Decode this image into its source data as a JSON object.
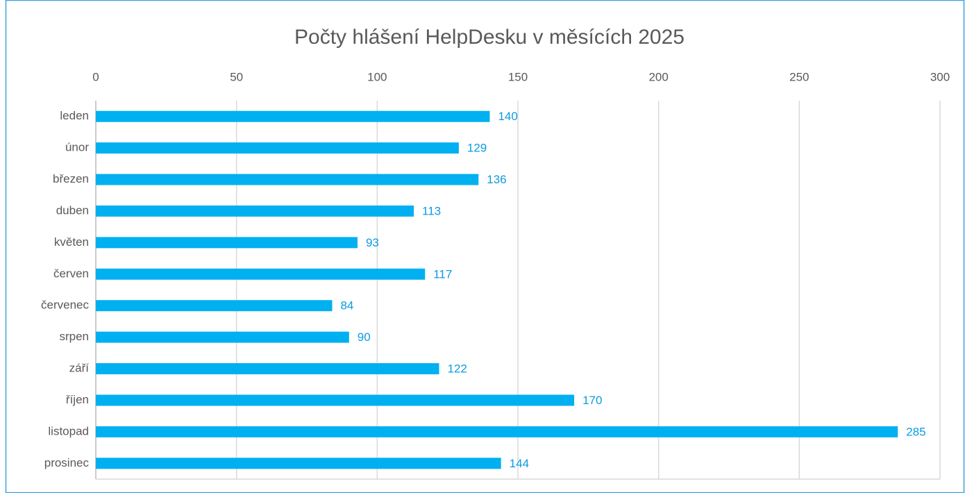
{
  "chart_data": {
    "type": "bar",
    "orientation": "horizontal",
    "title": "Počty hlášení HelpDesku v měsících 2025",
    "categories": [
      "leden",
      "únor",
      "březen",
      "duben",
      "květen",
      "červen",
      "červenec",
      "srpen",
      "září",
      "říjen",
      "listopad",
      "prosinec"
    ],
    "values": [
      140,
      129,
      136,
      113,
      93,
      117,
      84,
      90,
      122,
      170,
      285,
      144
    ],
    "color": "#00b0f0",
    "label_color": "#0b9be0",
    "xlim": [
      0,
      300
    ],
    "xticks": [
      0,
      50,
      100,
      150,
      200,
      250,
      300
    ],
    "grid": true,
    "axis_position": "top"
  }
}
